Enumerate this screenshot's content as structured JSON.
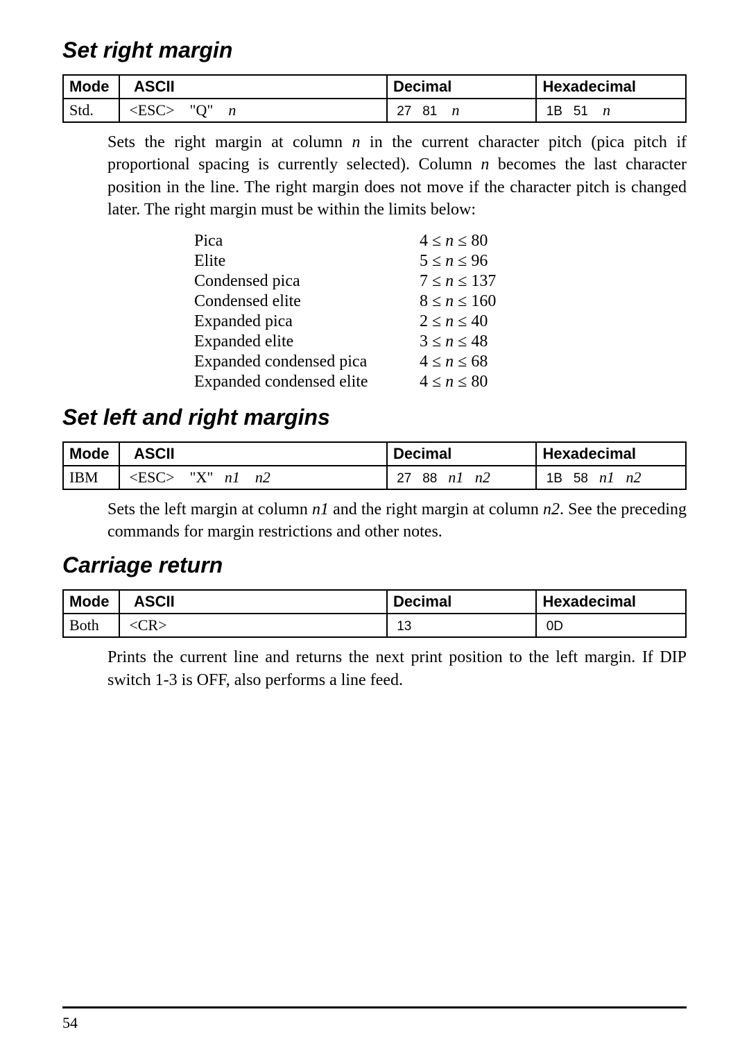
{
  "page_number": "54",
  "section1": {
    "title": "Set right margin",
    "table": {
      "headers": {
        "mode": "Mode",
        "ascii": "ASCII",
        "decimal": "Decimal",
        "hex": "Hexadecimal"
      },
      "row": {
        "mode": "Std.",
        "ascii_esc": "<ESC>",
        "ascii_q": "\"Q\"",
        "ascii_n": "n",
        "dec1": "27",
        "dec2": "81",
        "dec_n": "n",
        "hex1": "1B",
        "hex2": "51",
        "hex_n": "n"
      }
    },
    "body": "Sets the right margin at column n in the current character pitch (pica pitch if proportional spacing is currently selected). Column n becomes the last character position in the line. The right margin does not move if the character pitch is changed later. The right margin must be within the limits below:",
    "limits": [
      {
        "name": "Pica",
        "lo": "4",
        "hi": "80"
      },
      {
        "name": "Elite",
        "lo": "5",
        "hi": "96"
      },
      {
        "name": "Condensed pica",
        "lo": "7",
        "hi": "137"
      },
      {
        "name": "Condensed elite",
        "lo": "8",
        "hi": "160"
      },
      {
        "name": "Expanded pica",
        "lo": "2",
        "hi": "40"
      },
      {
        "name": "Expanded elite",
        "lo": "3",
        "hi": "48"
      },
      {
        "name": "Expanded condensed pica",
        "lo": "4",
        "hi": "68"
      },
      {
        "name": "Expanded condensed elite",
        "lo": "4",
        "hi": "80"
      }
    ]
  },
  "section2": {
    "title": "Set left and right margins",
    "table": {
      "headers": {
        "mode": "Mode",
        "ascii": "ASCII",
        "decimal": "Decimal",
        "hex": "Hexadecimal"
      },
      "row": {
        "mode": "IBM",
        "ascii_esc": "<ESC>",
        "ascii_x": "\"X\"",
        "ascii_n1": "n1",
        "ascii_n2": "n2",
        "dec1": "27",
        "dec2": "88",
        "dec_n1": "n1",
        "dec_n2": "n2",
        "hex1": "1B",
        "hex2": "58",
        "hex_n1": "n1",
        "hex_n2": "n2"
      }
    },
    "body": "Sets the left margin at column n1 and the right margin at column n2. See the preceding commands for margin restrictions and other notes."
  },
  "section3": {
    "title": "Carriage return",
    "table": {
      "headers": {
        "mode": "Mode",
        "ascii": "ASCII",
        "decimal": "Decimal",
        "hex": "Hexadecimal"
      },
      "row": {
        "mode": "Both",
        "ascii_cr": "<CR>",
        "dec1": "13",
        "hex1": "0D"
      }
    },
    "body": "Prints the current line and returns the next print position to the left margin. If DIP switch 1-3 is OFF, also performs a line feed."
  }
}
